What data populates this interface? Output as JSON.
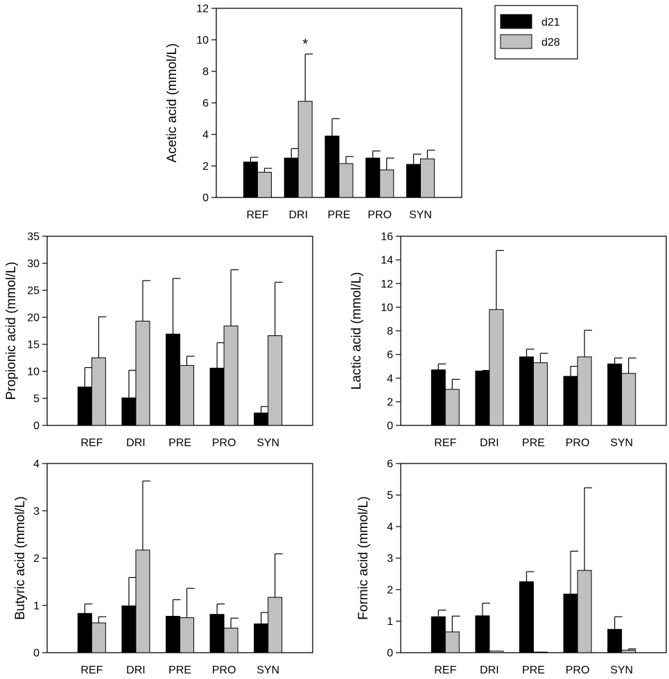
{
  "chart_data": [
    {
      "id": "acetic",
      "type": "bar",
      "ylabel": "Acetic acid (mmol/L)",
      "xlabel": "",
      "ylim": [
        0,
        12
      ],
      "yticks": [
        0,
        2,
        4,
        6,
        8,
        10,
        12
      ],
      "categories": [
        "REF",
        "DRI",
        "PRE",
        "PRO",
        "SYN"
      ],
      "series": [
        {
          "name": "d21",
          "color": "#000000",
          "values": [
            2.25,
            2.5,
            3.9,
            2.5,
            2.1
          ],
          "errors": [
            0.3,
            0.6,
            1.1,
            0.45,
            0.65
          ]
        },
        {
          "name": "d28",
          "color": "#c0c0c0",
          "values": [
            1.6,
            6.1,
            2.15,
            1.75,
            2.45
          ],
          "errors": [
            0.25,
            3.0,
            0.45,
            0.75,
            0.55
          ]
        }
      ],
      "annotations": [
        {
          "text": "*",
          "category": "DRI",
          "series": "d28"
        }
      ],
      "legend": {
        "position": "outside-right",
        "entries": [
          "d21",
          "d28"
        ]
      }
    },
    {
      "id": "propionic",
      "type": "bar",
      "ylabel": "Propionic acid (mmol/L)",
      "xlabel": "",
      "ylim": [
        0,
        35
      ],
      "yticks": [
        0,
        5,
        10,
        15,
        20,
        25,
        30,
        35
      ],
      "categories": [
        "REF",
        "DRI",
        "PRE",
        "PRO",
        "SYN"
      ],
      "series": [
        {
          "name": "d21",
          "color": "#000000",
          "values": [
            7.1,
            5.1,
            16.9,
            10.6,
            2.3
          ],
          "errors": [
            3.6,
            5.1,
            10.3,
            4.7,
            1.2
          ]
        },
        {
          "name": "d28",
          "color": "#c0c0c0",
          "values": [
            12.5,
            19.3,
            11.1,
            18.4,
            16.6
          ],
          "errors": [
            7.6,
            7.5,
            1.7,
            10.4,
            9.9
          ]
        }
      ]
    },
    {
      "id": "lactic",
      "type": "bar",
      "ylabel": "Lactic acid (mmol/L)",
      "xlabel": "",
      "ylim": [
        0,
        16
      ],
      "yticks": [
        0,
        2,
        4,
        6,
        8,
        10,
        12,
        14,
        16
      ],
      "categories": [
        "REF",
        "DRI",
        "PRE",
        "PRO",
        "SYN"
      ],
      "series": [
        {
          "name": "d21",
          "color": "#000000",
          "values": [
            4.7,
            4.6,
            5.8,
            4.15,
            5.2
          ],
          "errors": [
            0.5,
            0.05,
            0.65,
            0.85,
            0.5
          ]
        },
        {
          "name": "d28",
          "color": "#c0c0c0",
          "values": [
            3.05,
            9.8,
            5.3,
            5.8,
            4.4
          ],
          "errors": [
            0.85,
            5.0,
            0.8,
            2.25,
            1.3
          ]
        }
      ]
    },
    {
      "id": "butyric",
      "type": "bar",
      "ylabel": "Butyric acid (mmol/L)",
      "xlabel": "",
      "ylim": [
        0,
        4
      ],
      "yticks": [
        0,
        1,
        2,
        3,
        4
      ],
      "categories": [
        "REF",
        "DRI",
        "PRE",
        "PRO",
        "SYN"
      ],
      "series": [
        {
          "name": "d21",
          "color": "#000000",
          "values": [
            0.83,
            0.99,
            0.77,
            0.81,
            0.61
          ],
          "errors": [
            0.2,
            0.6,
            0.35,
            0.22,
            0.24
          ]
        },
        {
          "name": "d28",
          "color": "#c0c0c0",
          "values": [
            0.63,
            2.17,
            0.74,
            0.52,
            1.17
          ],
          "errors": [
            0.13,
            1.46,
            0.62,
            0.21,
            0.92
          ]
        }
      ]
    },
    {
      "id": "formic",
      "type": "bar",
      "ylabel": "Formic acid (mmol/L)",
      "xlabel": "",
      "ylim": [
        0,
        6
      ],
      "yticks": [
        0,
        1,
        2,
        3,
        4,
        5,
        6
      ],
      "categories": [
        "REF",
        "DRI",
        "PRE",
        "PRO",
        "SYN"
      ],
      "series": [
        {
          "name": "d21",
          "color": "#000000",
          "values": [
            1.14,
            1.17,
            2.25,
            1.86,
            0.74
          ],
          "errors": [
            0.21,
            0.4,
            0.32,
            1.36,
            0.4
          ]
        },
        {
          "name": "d28",
          "color": "#c0c0c0",
          "values": [
            0.66,
            0.05,
            0.02,
            2.61,
            0.08
          ],
          "errors": [
            0.5,
            0.0,
            0.0,
            2.62,
            0.04
          ]
        }
      ]
    }
  ]
}
